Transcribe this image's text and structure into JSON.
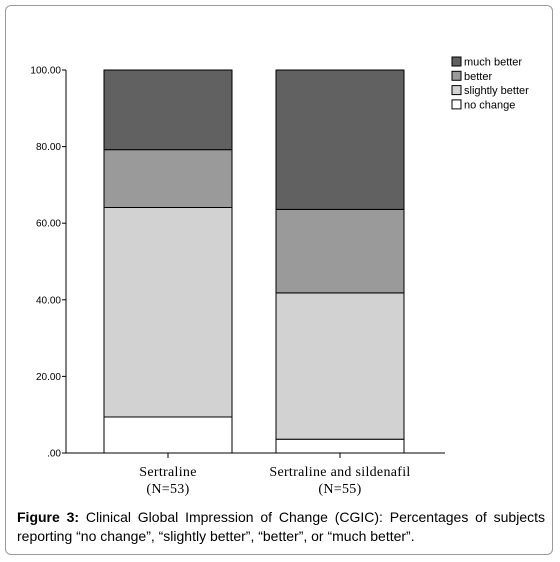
{
  "chart_data": {
    "type": "bar",
    "stacked": true,
    "categories": [
      {
        "name": "Sertraline",
        "n": "(N=53)"
      },
      {
        "name": "Sertraline and sildenafil",
        "n": "(N=55)"
      }
    ],
    "series": [
      {
        "name": "no change",
        "color": "#ffffff",
        "values": [
          9.4,
          3.6
        ]
      },
      {
        "name": "slightly better",
        "color": "#d2d2d2",
        "values": [
          54.7,
          38.2
        ]
      },
      {
        "name": "better",
        "color": "#9a9a9a",
        "values": [
          15.1,
          21.8
        ]
      },
      {
        "name": "much better",
        "color": "#616161",
        "values": [
          20.8,
          36.4
        ]
      }
    ],
    "legend_order": [
      "much better",
      "better",
      "slightly better",
      "no change"
    ],
    "yticks": [
      ".00",
      "20.00",
      "40.00",
      "60.00",
      "80.00",
      "100.00"
    ],
    "ylim": [
      0,
      100
    ],
    "legend_position": "top-right",
    "grid": false
  },
  "caption": {
    "label": "Figure 3:",
    "text": " Clinical Global Impression of Change (CGIC): Percentages of subjects reporting “no change”, “slightly better”, “better”, or “much better”."
  }
}
